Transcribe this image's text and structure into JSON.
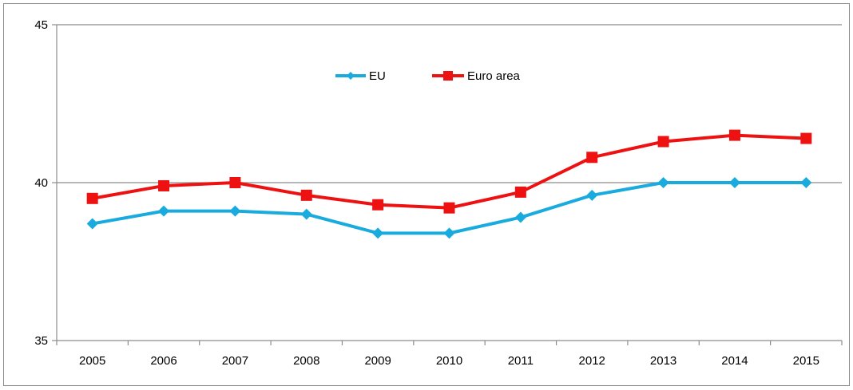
{
  "chart_data": {
    "type": "line",
    "categories": [
      "2005",
      "2006",
      "2007",
      "2008",
      "2009",
      "2010",
      "2011",
      "2012",
      "2013",
      "2014",
      "2015"
    ],
    "ylim": [
      35,
      45
    ],
    "yticks": [
      35,
      40,
      45
    ],
    "grid": {
      "y": true,
      "x": false
    },
    "legend_position": "top-center",
    "series": [
      {
        "name": "EU",
        "color": "#1aabde",
        "marker": "diamond",
        "values": [
          38.7,
          39.1,
          39.1,
          39.0,
          38.4,
          38.4,
          38.9,
          39.6,
          40.0,
          40.0,
          40.0
        ]
      },
      {
        "name": "Euro area",
        "color": "#ee1111",
        "marker": "square",
        "values": [
          39.5,
          39.9,
          40.0,
          39.6,
          39.3,
          39.2,
          39.7,
          40.8,
          41.3,
          41.5,
          41.4
        ]
      }
    ]
  }
}
